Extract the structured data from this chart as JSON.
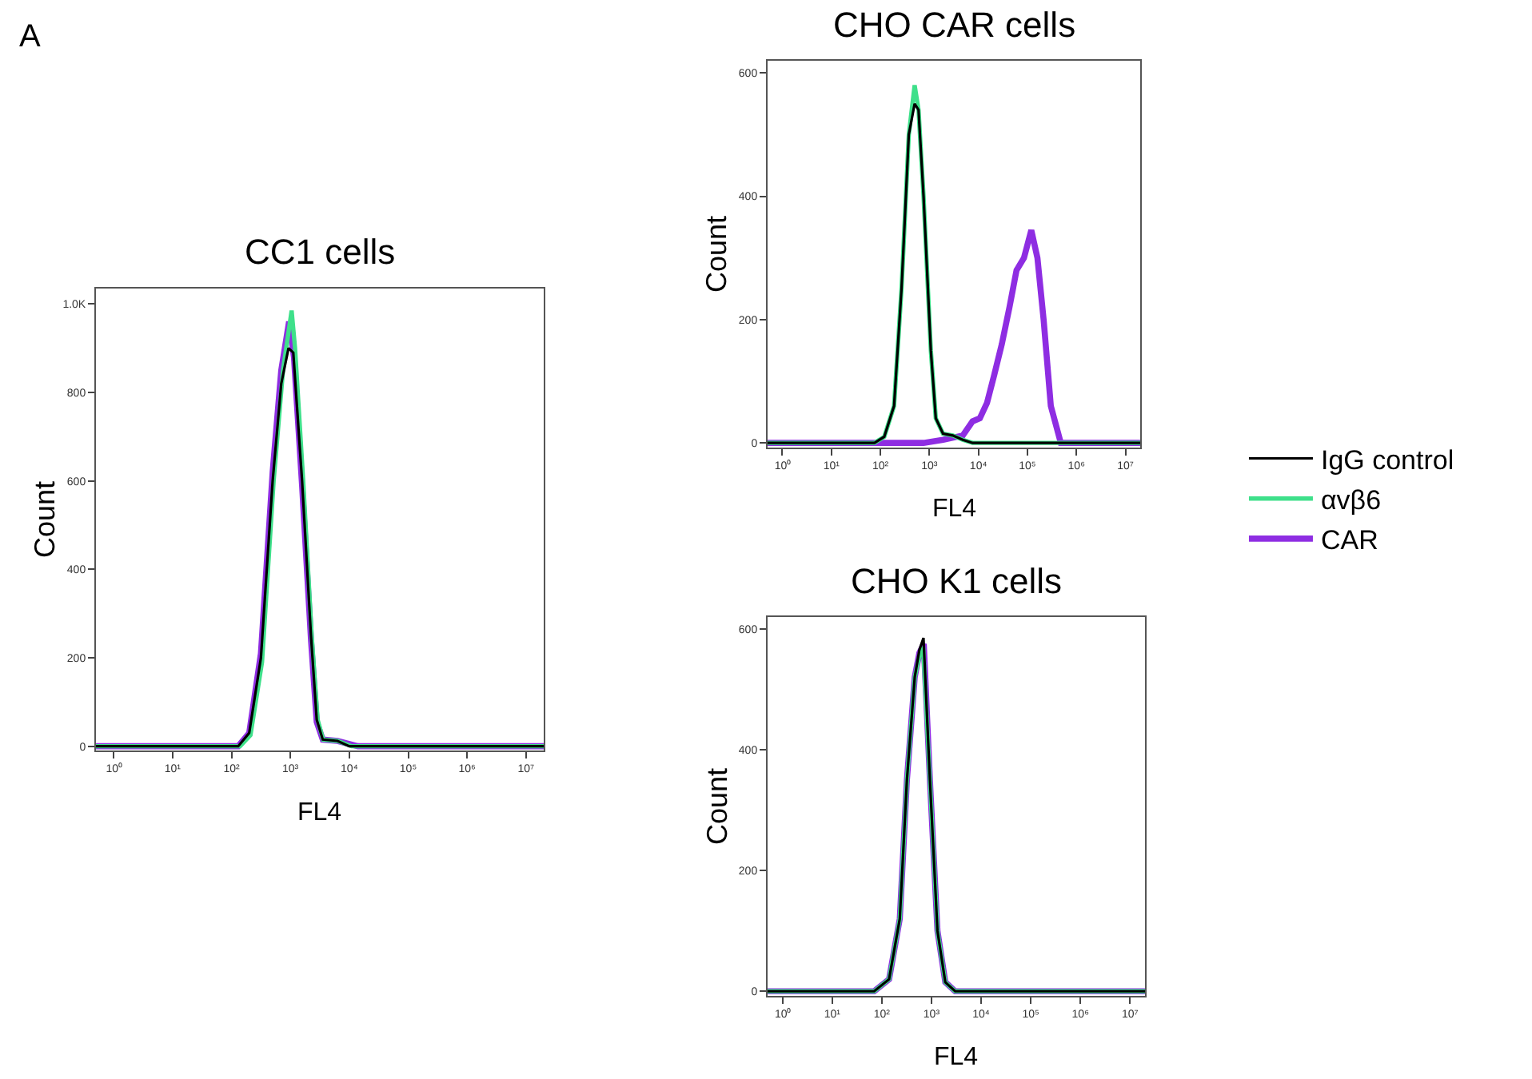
{
  "chart_data": [
    {
      "type": "line",
      "title": "CC1 cells",
      "xlabel": "FL4",
      "ylabel": "Count",
      "annotations": [
        "A"
      ],
      "log": "x",
      "legend": "right",
      "marker": "none",
      "line_style": "solid",
      "xlim": [
        0.5,
        20000000
      ],
      "xticks": [
        {
          "value": 1,
          "label": "10⁰"
        },
        {
          "value": 10,
          "label": "10¹"
        },
        {
          "value": 100,
          "label": "10²"
        },
        {
          "value": 1000,
          "label": "10³"
        },
        {
          "value": 10000,
          "label": "10⁴"
        },
        {
          "value": 100000,
          "label": "10⁵"
        },
        {
          "value": 1000000,
          "label": "10⁶"
        },
        {
          "value": 10000000,
          "label": "10⁷"
        }
      ],
      "ylim": [
        -10,
        1035
      ],
      "yticks": [
        0,
        200,
        400,
        600,
        800,
        {
          "value": 1000,
          "label": "1.0K"
        }
      ],
      "series": [
        {
          "name": "CAR",
          "color": "#8e2de2",
          "x": [
            0.5,
            130,
            200,
            316,
            500,
            700,
            950,
            1150,
            1580,
            2240,
            2800,
            3550,
            6300,
            14000,
            20000000
          ],
          "values": [
            0,
            0,
            30,
            210,
            620,
            850,
            960,
            880,
            590,
            240,
            55,
            15,
            12,
            0,
            0
          ]
        },
        {
          "name": "αvβ6",
          "color": "#3ee08a",
          "x": [
            0.5,
            140,
            210,
            330,
            520,
            750,
            1050,
            1200,
            1650,
            2300,
            2900,
            3600,
            6300,
            11000,
            20000000
          ],
          "values": [
            0,
            0,
            25,
            190,
            600,
            850,
            985,
            900,
            600,
            250,
            60,
            15,
            12,
            0,
            0
          ]
        },
        {
          "name": "IgG control",
          "color": "#000000",
          "x": [
            0.5,
            130,
            200,
            316,
            500,
            700,
            930,
            1120,
            1580,
            2240,
            2800,
            3550,
            6300,
            10000,
            20000000
          ],
          "values": [
            0,
            0,
            30,
            200,
            600,
            820,
            900,
            890,
            600,
            250,
            60,
            15,
            12,
            0,
            0
          ]
        }
      ]
    },
    {
      "type": "line",
      "title": "CHO CAR cells",
      "xlabel": "FL4",
      "ylabel": "Count",
      "log": "x",
      "legend": "right",
      "marker": "none",
      "line_style": "solid",
      "xlim": [
        0.5,
        20000000
      ],
      "xticks": [
        {
          "value": 1,
          "label": "10⁰"
        },
        {
          "value": 10,
          "label": "10¹"
        },
        {
          "value": 100,
          "label": "10²"
        },
        {
          "value": 1000,
          "label": "10³"
        },
        {
          "value": 10000,
          "label": "10⁴"
        },
        {
          "value": 100000,
          "label": "10⁵"
        },
        {
          "value": 1000000,
          "label": "10⁶"
        },
        {
          "value": 10000000,
          "label": "10⁷"
        }
      ],
      "ylim": [
        -8,
        620
      ],
      "yticks": [
        0,
        200,
        400,
        600
      ],
      "series": [
        {
          "name": "CAR",
          "color": "#8e2de2",
          "x": [
            0.5,
            760,
            1900,
            4800,
            7600,
            10700,
            15000,
            21000,
            30000,
            43000,
            60000,
            85000,
            120000,
            160000,
            214000,
            300000,
            480000,
            20000000
          ],
          "values": [
            0,
            0,
            5,
            12,
            35,
            40,
            65,
            110,
            160,
            220,
            280,
            300,
            345,
            300,
            200,
            60,
            0,
            0
          ]
        },
        {
          "name": "αvβ6",
          "color": "#3ee08a",
          "x": [
            0.5,
            76,
            120,
            190,
            270,
            380,
            500,
            600,
            760,
            1070,
            1350,
            1900,
            3000,
            4800,
            7600,
            20000000
          ],
          "values": [
            0,
            0,
            10,
            60,
            250,
            500,
            580,
            540,
            400,
            150,
            40,
            15,
            12,
            5,
            0,
            0
          ]
        },
        {
          "name": "IgG control",
          "color": "#000000",
          "x": [
            0.5,
            76,
            120,
            190,
            270,
            380,
            500,
            600,
            760,
            1070,
            1350,
            1900,
            3000,
            4800,
            7600,
            20000000
          ],
          "values": [
            0,
            0,
            10,
            60,
            250,
            500,
            550,
            540,
            400,
            150,
            40,
            15,
            12,
            5,
            0,
            0
          ]
        }
      ]
    },
    {
      "type": "line",
      "title": "CHO K1 cells",
      "xlabel": "FL4",
      "ylabel": "Count",
      "log": "x",
      "legend": "right",
      "marker": "none",
      "line_style": "solid",
      "xlim": [
        0.5,
        20000000
      ],
      "xticks": [
        {
          "value": 1,
          "label": "10⁰"
        },
        {
          "value": 10,
          "label": "10¹"
        },
        {
          "value": 100,
          "label": "10²"
        },
        {
          "value": 1000,
          "label": "10³"
        },
        {
          "value": 10000,
          "label": "10⁴"
        },
        {
          "value": 100000,
          "label": "10⁵"
        },
        {
          "value": 1000000,
          "label": "10⁶"
        },
        {
          "value": 10000000,
          "label": "10⁷"
        }
      ],
      "ylim": [
        -8,
        620
      ],
      "yticks": [
        0,
        200,
        400,
        600
      ],
      "series": [
        {
          "name": "CAR",
          "color": "#8e2de2",
          "x": [
            0.5,
            70,
            140,
            230,
            320,
            460,
            570,
            700,
            930,
            1320,
            1900,
            3000,
            20000000
          ],
          "values": [
            0,
            0,
            20,
            120,
            350,
            520,
            560,
            575,
            350,
            100,
            15,
            0,
            0
          ]
        },
        {
          "name": "αvβ6",
          "color": "#3ee08a",
          "x": [
            0.5,
            70,
            140,
            230,
            320,
            460,
            570,
            680,
            930,
            1320,
            1900,
            3000,
            20000000
          ],
          "values": [
            0,
            0,
            20,
            120,
            350,
            520,
            555,
            570,
            350,
            100,
            15,
            0,
            0
          ]
        },
        {
          "name": "IgG control",
          "color": "#000000",
          "x": [
            0.5,
            70,
            140,
            230,
            320,
            460,
            570,
            690,
            930,
            1320,
            1900,
            3000,
            20000000
          ],
          "values": [
            0,
            0,
            20,
            120,
            350,
            520,
            565,
            585,
            350,
            100,
            15,
            0,
            0
          ]
        }
      ]
    }
  ]
}
